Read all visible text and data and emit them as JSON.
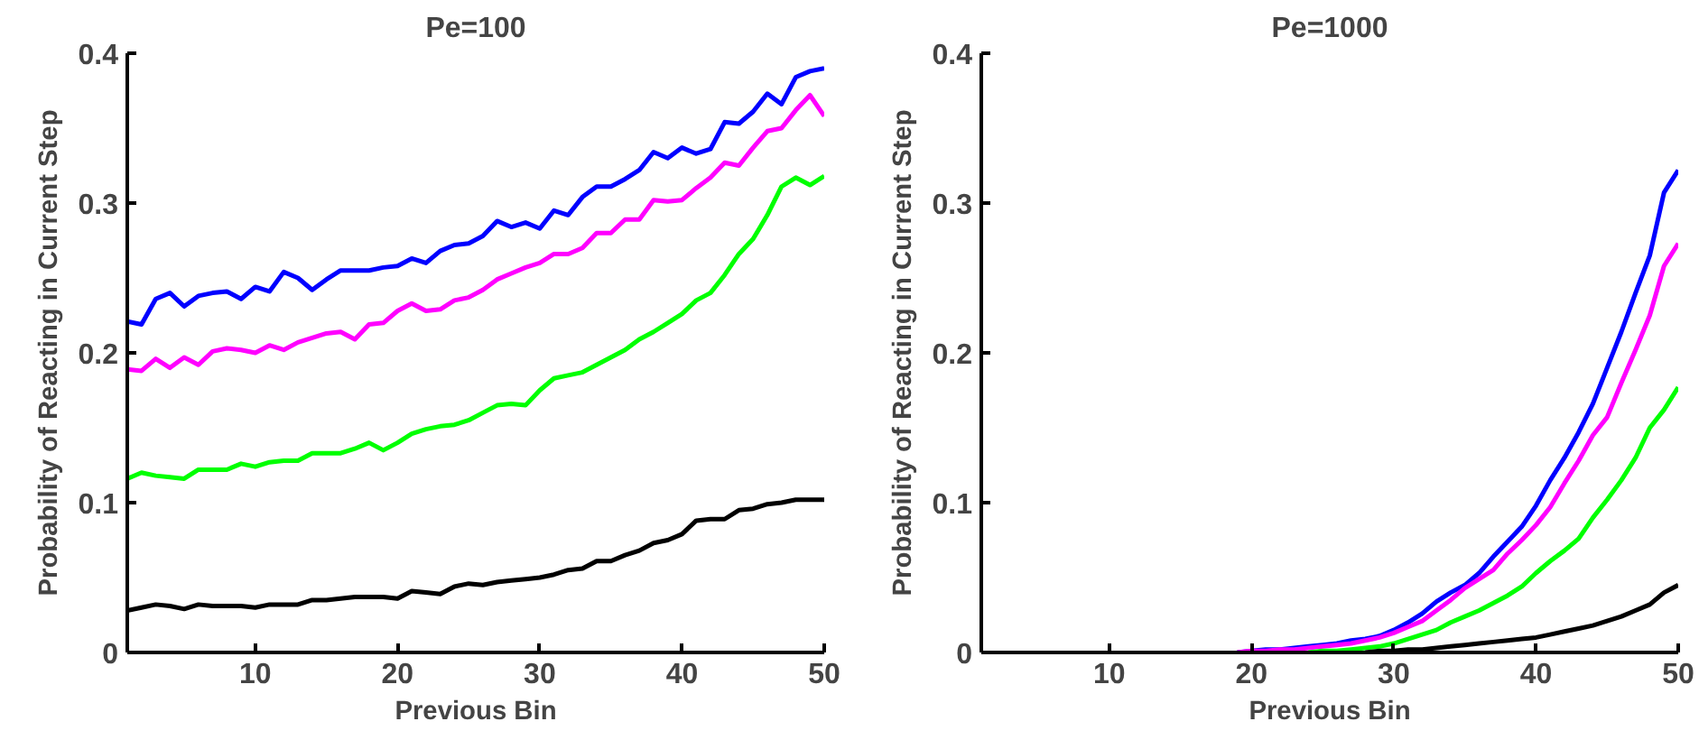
{
  "chart_data": [
    {
      "type": "line",
      "title": "Pe=100",
      "xlabel": "Previous Bin",
      "ylabel": "Probability of Reacting in Current Step",
      "xlim": [
        1,
        50
      ],
      "ylim": [
        0,
        0.4
      ],
      "xticks": [
        10,
        20,
        30,
        40,
        50
      ],
      "yticks": [
        0,
        0.1,
        0.2,
        0.3,
        0.4
      ],
      "grid": false,
      "marker": "none",
      "line_style": "solid",
      "x": [
        1,
        2,
        3,
        4,
        5,
        6,
        7,
        8,
        9,
        10,
        11,
        12,
        13,
        14,
        15,
        16,
        17,
        18,
        19,
        20,
        21,
        22,
        23,
        24,
        25,
        26,
        27,
        28,
        29,
        30,
        31,
        32,
        33,
        34,
        35,
        36,
        37,
        38,
        39,
        40,
        41,
        42,
        43,
        44,
        45,
        46,
        47,
        48,
        49,
        50
      ],
      "series": [
        {
          "color": "#0000ff",
          "values": [
            0.221,
            0.219,
            0.236,
            0.24,
            0.231,
            0.238,
            0.24,
            0.241,
            0.236,
            0.244,
            0.241,
            0.254,
            0.25,
            0.242,
            0.249,
            0.255,
            0.255,
            0.255,
            0.257,
            0.258,
            0.263,
            0.26,
            0.268,
            0.272,
            0.273,
            0.278,
            0.288,
            0.284,
            0.287,
            0.283,
            0.295,
            0.292,
            0.304,
            0.311,
            0.311,
            0.316,
            0.322,
            0.334,
            0.33,
            0.337,
            0.333,
            0.336,
            0.354,
            0.353,
            0.361,
            0.373,
            0.366,
            0.384,
            0.388,
            0.39
          ]
        },
        {
          "color": "#ff00ff",
          "values": [
            0.189,
            0.188,
            0.196,
            0.19,
            0.197,
            0.192,
            0.201,
            0.203,
            0.202,
            0.2,
            0.205,
            0.202,
            0.207,
            0.21,
            0.213,
            0.214,
            0.209,
            0.219,
            0.22,
            0.228,
            0.233,
            0.228,
            0.229,
            0.235,
            0.237,
            0.242,
            0.249,
            0.253,
            0.257,
            0.26,
            0.266,
            0.266,
            0.27,
            0.28,
            0.28,
            0.289,
            0.289,
            0.302,
            0.301,
            0.302,
            0.31,
            0.317,
            0.327,
            0.325,
            0.337,
            0.348,
            0.35,
            0.362,
            0.372,
            0.358
          ]
        },
        {
          "color": "#00ff00",
          "values": [
            0.116,
            0.12,
            0.118,
            0.117,
            0.116,
            0.122,
            0.122,
            0.122,
            0.126,
            0.124,
            0.127,
            0.128,
            0.128,
            0.133,
            0.133,
            0.133,
            0.136,
            0.14,
            0.135,
            0.14,
            0.146,
            0.149,
            0.151,
            0.152,
            0.155,
            0.16,
            0.165,
            0.166,
            0.165,
            0.175,
            0.183,
            0.185,
            0.187,
            0.192,
            0.197,
            0.202,
            0.209,
            0.214,
            0.22,
            0.226,
            0.235,
            0.24,
            0.252,
            0.266,
            0.276,
            0.292,
            0.311,
            0.317,
            0.312,
            0.318
          ]
        },
        {
          "color": "#000000",
          "values": [
            0.028,
            0.03,
            0.032,
            0.031,
            0.029,
            0.032,
            0.031,
            0.031,
            0.031,
            0.03,
            0.032,
            0.032,
            0.032,
            0.035,
            0.035,
            0.036,
            0.037,
            0.037,
            0.037,
            0.036,
            0.041,
            0.04,
            0.039,
            0.044,
            0.046,
            0.045,
            0.047,
            0.048,
            0.049,
            0.05,
            0.052,
            0.055,
            0.056,
            0.061,
            0.061,
            0.065,
            0.068,
            0.073,
            0.075,
            0.079,
            0.088,
            0.089,
            0.089,
            0.095,
            0.096,
            0.099,
            0.1,
            0.102,
            0.102,
            0.102
          ]
        }
      ]
    },
    {
      "type": "line",
      "title": "Pe=1000",
      "xlabel": "Previous Bin",
      "ylabel": "Probability of Reacting in Current Step",
      "xlim": [
        1,
        50
      ],
      "ylim": [
        0,
        0.4
      ],
      "xticks": [
        10,
        20,
        30,
        40,
        50
      ],
      "yticks": [
        0,
        0.1,
        0.2,
        0.3,
        0.4
      ],
      "grid": false,
      "marker": "none",
      "line_style": "solid",
      "series": [
        {
          "color": "#0000ff",
          "x": [
            19,
            20,
            21,
            22,
            23,
            24,
            25,
            26,
            27,
            28,
            29,
            30,
            31,
            32,
            33,
            34,
            35,
            36,
            37,
            38,
            39,
            40,
            41,
            42,
            43,
            44,
            45,
            46,
            47,
            48,
            49,
            50
          ],
          "values": [
            0,
            0.001,
            0.002,
            0.002,
            0.003,
            0.004,
            0.005,
            0.006,
            0.008,
            0.009,
            0.011,
            0.015,
            0.02,
            0.026,
            0.034,
            0.04,
            0.045,
            0.053,
            0.064,
            0.074,
            0.084,
            0.098,
            0.115,
            0.13,
            0.147,
            0.166,
            0.19,
            0.214,
            0.24,
            0.265,
            0.307,
            0.322
          ]
        },
        {
          "color": "#ff00ff",
          "x": [
            19,
            20,
            21,
            22,
            23,
            24,
            25,
            26,
            27,
            28,
            29,
            30,
            31,
            32,
            33,
            34,
            35,
            36,
            37,
            38,
            39,
            40,
            41,
            42,
            43,
            44,
            45,
            46,
            47,
            48,
            49,
            50
          ],
          "values": [
            0,
            0.001,
            0.001,
            0.002,
            0.002,
            0.003,
            0.004,
            0.005,
            0.006,
            0.008,
            0.01,
            0.013,
            0.017,
            0.021,
            0.028,
            0.035,
            0.043,
            0.049,
            0.055,
            0.066,
            0.075,
            0.085,
            0.097,
            0.113,
            0.128,
            0.145,
            0.157,
            0.18,
            0.202,
            0.225,
            0.258,
            0.273
          ]
        },
        {
          "color": "#00ff00",
          "x": [
            24,
            25,
            26,
            27,
            28,
            29,
            30,
            31,
            32,
            33,
            34,
            35,
            36,
            37,
            38,
            39,
            40,
            41,
            42,
            43,
            44,
            45,
            46,
            47,
            48,
            49,
            50
          ],
          "values": [
            0,
            0.001,
            0.001,
            0.002,
            0.003,
            0.004,
            0.006,
            0.009,
            0.012,
            0.015,
            0.02,
            0.024,
            0.028,
            0.033,
            0.038,
            0.044,
            0.053,
            0.061,
            0.068,
            0.076,
            0.09,
            0.102,
            0.115,
            0.13,
            0.15,
            0.162,
            0.177
          ]
        },
        {
          "color": "#000000",
          "x": [
            28,
            29,
            30,
            31,
            32,
            33,
            34,
            35,
            36,
            37,
            38,
            39,
            40,
            41,
            42,
            43,
            44,
            45,
            46,
            47,
            48,
            49,
            50
          ],
          "values": [
            0,
            0.001,
            0.001,
            0.002,
            0.002,
            0.003,
            0.004,
            0.005,
            0.006,
            0.007,
            0.008,
            0.009,
            0.01,
            0.012,
            0.014,
            0.016,
            0.018,
            0.021,
            0.024,
            0.028,
            0.032,
            0.04,
            0.045
          ]
        }
      ]
    }
  ]
}
